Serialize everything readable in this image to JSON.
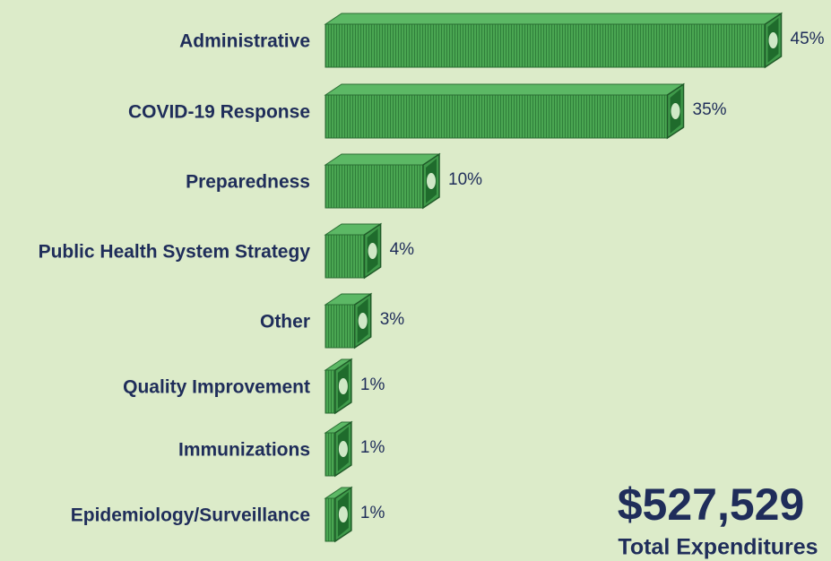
{
  "chart_data": {
    "type": "bar",
    "orientation": "horizontal",
    "categories": [
      "Administrative",
      "COVID-19 Response",
      "Preparedness",
      "Public Health System Strategy",
      "Other",
      "Quality Improvement",
      "Immunizations",
      "Epidemiology/Surveillance"
    ],
    "values": [
      45,
      35,
      10,
      4,
      3,
      1,
      1,
      1
    ],
    "value_labels": [
      "45%",
      "35%",
      "10%",
      "4%",
      "3%",
      "1%",
      "1%",
      "1%"
    ],
    "color": "#3f9a4a",
    "annotations": [
      "$527,529",
      "Total Expenditures"
    ]
  }
}
